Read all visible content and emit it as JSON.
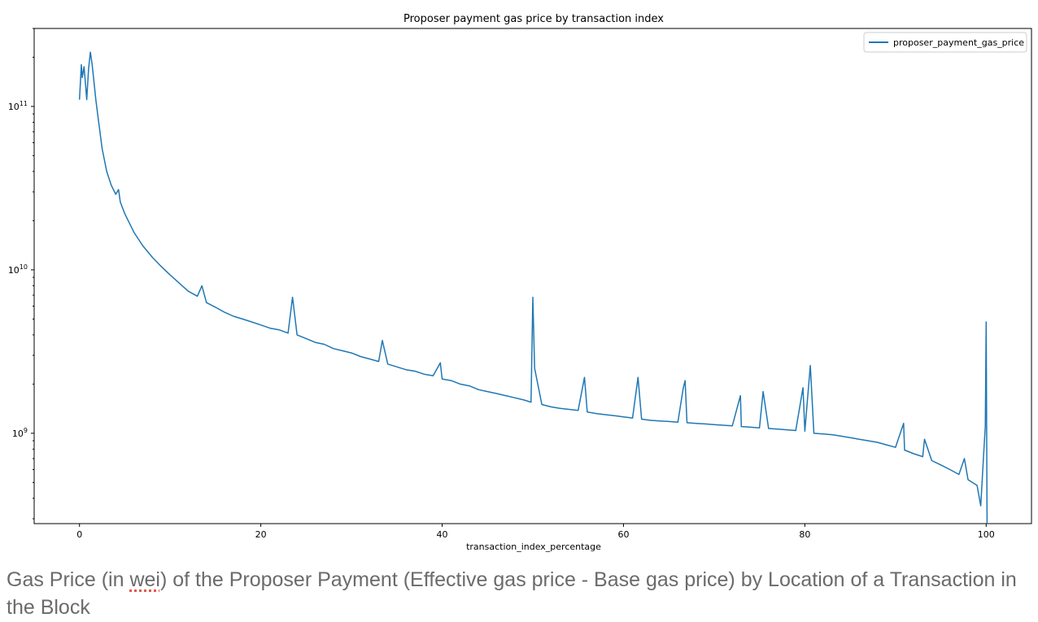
{
  "chart_data": {
    "type": "line",
    "title": "Proposer payment gas price by transaction index",
    "xlabel": "transaction_index_percentage",
    "ylabel": "",
    "yscale": "log",
    "xlim": [
      -5,
      105
    ],
    "ylim": [
      280000000,
      300000000000
    ],
    "x_ticks": [
      0,
      20,
      40,
      60,
      80,
      100
    ],
    "y_ticks": [
      {
        "value": 1000000000,
        "base": "10",
        "exp": "9"
      },
      {
        "value": 10000000000,
        "base": "10",
        "exp": "10"
      },
      {
        "value": 100000000000,
        "base": "10",
        "exp": "11"
      }
    ],
    "grid": false,
    "legend_position": "top-right",
    "series": [
      {
        "name": "proposer_payment_gas_price",
        "color": "#1f77b4",
        "x": [
          0,
          0.2,
          0.3,
          0.5,
          0.7,
          0.8,
          1.0,
          1.2,
          1.4,
          1.6,
          1.8,
          2.0,
          2.5,
          3.0,
          3.5,
          4.0,
          4.3,
          4.5,
          5,
          6,
          7,
          8,
          9,
          10,
          11,
          12,
          13,
          13.5,
          14,
          15,
          16,
          17,
          18,
          19,
          20,
          21,
          22,
          23,
          23.5,
          24,
          25,
          26,
          27,
          28,
          29,
          30,
          31,
          32,
          33,
          33.4,
          34,
          35,
          36,
          37,
          38,
          39,
          39.8,
          40,
          41,
          42,
          43,
          44,
          45,
          46,
          47,
          48,
          49,
          49.8,
          50.0,
          50.2,
          51,
          52,
          53,
          54,
          55,
          55.7,
          56,
          57,
          58,
          59,
          60,
          61,
          61.6,
          62,
          63,
          64,
          65,
          66,
          66.6,
          66.8,
          67,
          68,
          69,
          70,
          71,
          72,
          72.9,
          73,
          74,
          75,
          75.4,
          76,
          77,
          78,
          79,
          79.8,
          80,
          80.6,
          81,
          82,
          83,
          84,
          85,
          86,
          87,
          88,
          89,
          90,
          90.9,
          91,
          92,
          93,
          93.2,
          94,
          95,
          96,
          97,
          97.6,
          98,
          99,
          99.4,
          99.7,
          99.9,
          100.0,
          100.1
        ],
        "values": [
          110000000000,
          180000000000,
          150000000000,
          175000000000,
          130000000000,
          110000000000,
          170000000000,
          215000000000,
          180000000000,
          140000000000,
          110000000000,
          90000000000,
          55000000000,
          40000000000,
          33000000000,
          29000000000,
          31000000000,
          26000000000,
          22000000000,
          17000000000,
          14000000000,
          12000000000,
          10500000000,
          9300000000,
          8300000000,
          7400000000,
          6900000000,
          8000000000,
          6300000000,
          5900000000,
          5500000000,
          5200000000,
          5000000000,
          4800000000,
          4600000000,
          4400000000,
          4300000000,
          4100000000,
          6800000000,
          4000000000,
          3800000000,
          3600000000,
          3500000000,
          3300000000,
          3200000000,
          3100000000,
          2950000000,
          2850000000,
          2750000000,
          3700000000,
          2650000000,
          2550000000,
          2450000000,
          2400000000,
          2300000000,
          2250000000,
          2700000000,
          2150000000,
          2100000000,
          2000000000,
          1950000000,
          1850000000,
          1800000000,
          1750000000,
          1700000000,
          1650000000,
          1600000000,
          1550000000,
          6800000000,
          2500000000,
          1500000000,
          1450000000,
          1420000000,
          1400000000,
          1380000000,
          2200000000,
          1350000000,
          1320000000,
          1300000000,
          1280000000,
          1260000000,
          1240000000,
          2200000000,
          1220000000,
          1200000000,
          1190000000,
          1180000000,
          1170000000,
          1900000000,
          2100000000,
          1160000000,
          1150000000,
          1140000000,
          1130000000,
          1120000000,
          1110000000,
          1700000000,
          1100000000,
          1090000000,
          1080000000,
          1800000000,
          1070000000,
          1060000000,
          1050000000,
          1040000000,
          1900000000,
          1030000000,
          2600000000,
          1000000000,
          990000000,
          980000000,
          960000000,
          940000000,
          920000000,
          900000000,
          880000000,
          850000000,
          820000000,
          1150000000,
          790000000,
          750000000,
          720000000,
          920000000,
          680000000,
          640000000,
          600000000,
          560000000,
          700000000,
          520000000,
          480000000,
          360000000,
          700000000,
          1100000000,
          4800000000,
          280000000
        ]
      }
    ]
  },
  "caption": {
    "before": "Gas Price (in ",
    "underlined": "wei",
    "after": ") of the Proposer Payment (Effective gas price - Base gas price) by Location of a Transaction in the Block"
  }
}
